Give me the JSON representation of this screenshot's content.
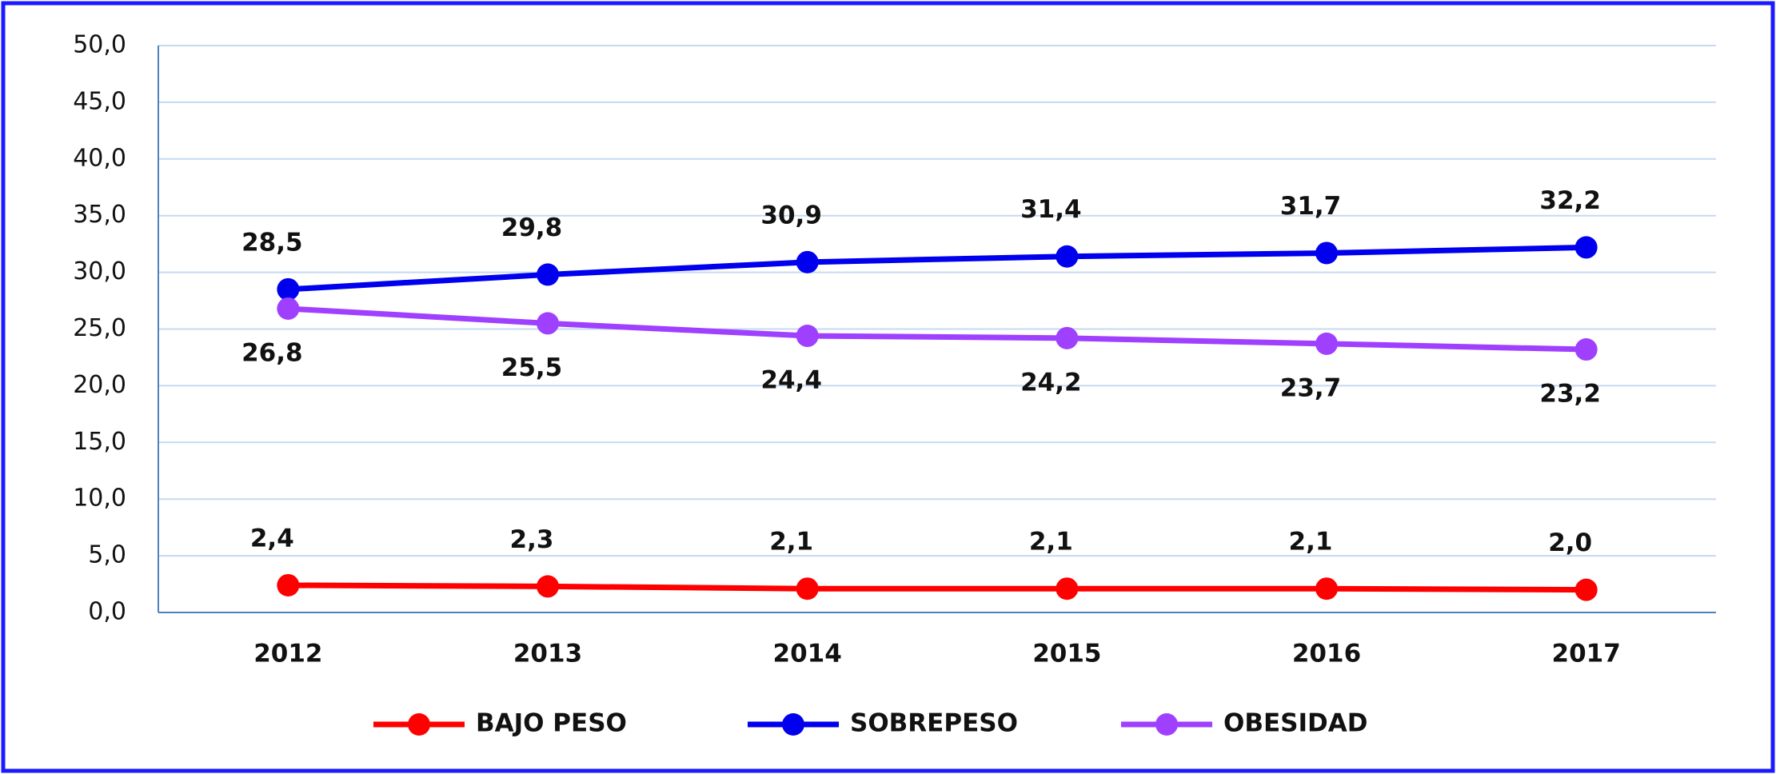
{
  "chart_data": {
    "type": "line",
    "categories": [
      "2012",
      "2013",
      "2014",
      "2015",
      "2016",
      "2017"
    ],
    "series": [
      {
        "name": "BAJO PESO",
        "color": "#ff0000",
        "values": [
          2.4,
          2.3,
          2.1,
          2.1,
          2.1,
          2.0
        ],
        "value_labels": [
          "2,4",
          "2,3",
          "2,1",
          "2,1",
          "2,1",
          "2,0"
        ],
        "label_side": "above"
      },
      {
        "name": "SOBREPESO",
        "color": "#0000ee",
        "values": [
          28.5,
          29.8,
          30.9,
          31.4,
          31.7,
          32.2
        ],
        "value_labels": [
          "28,5",
          "29,8",
          "30,9",
          "31,4",
          "31,7",
          "32,2"
        ],
        "label_side": "above"
      },
      {
        "name": "OBESIDAD",
        "color": "#a040ff",
        "values": [
          26.8,
          25.5,
          24.4,
          24.2,
          23.7,
          23.2
        ],
        "value_labels": [
          "26,8",
          "25,5",
          "24,4",
          "24,2",
          "23,7",
          "23,2"
        ],
        "label_side": "below"
      }
    ],
    "ylim": [
      0,
      50
    ],
    "yticks": [
      {
        "value": 0,
        "label": "0,0"
      },
      {
        "value": 5,
        "label": "5,0"
      },
      {
        "value": 10,
        "label": "10,0"
      },
      {
        "value": 15,
        "label": "15,0"
      },
      {
        "value": 20,
        "label": "20,0"
      },
      {
        "value": 25,
        "label": "25,0"
      },
      {
        "value": 30,
        "label": "30,0"
      },
      {
        "value": 35,
        "label": "35,0"
      },
      {
        "value": 40,
        "label": "40,0"
      },
      {
        "value": 45,
        "label": "45,0"
      },
      {
        "value": 50,
        "label": "50,0"
      }
    ],
    "grid": true,
    "legend": "bottom"
  }
}
